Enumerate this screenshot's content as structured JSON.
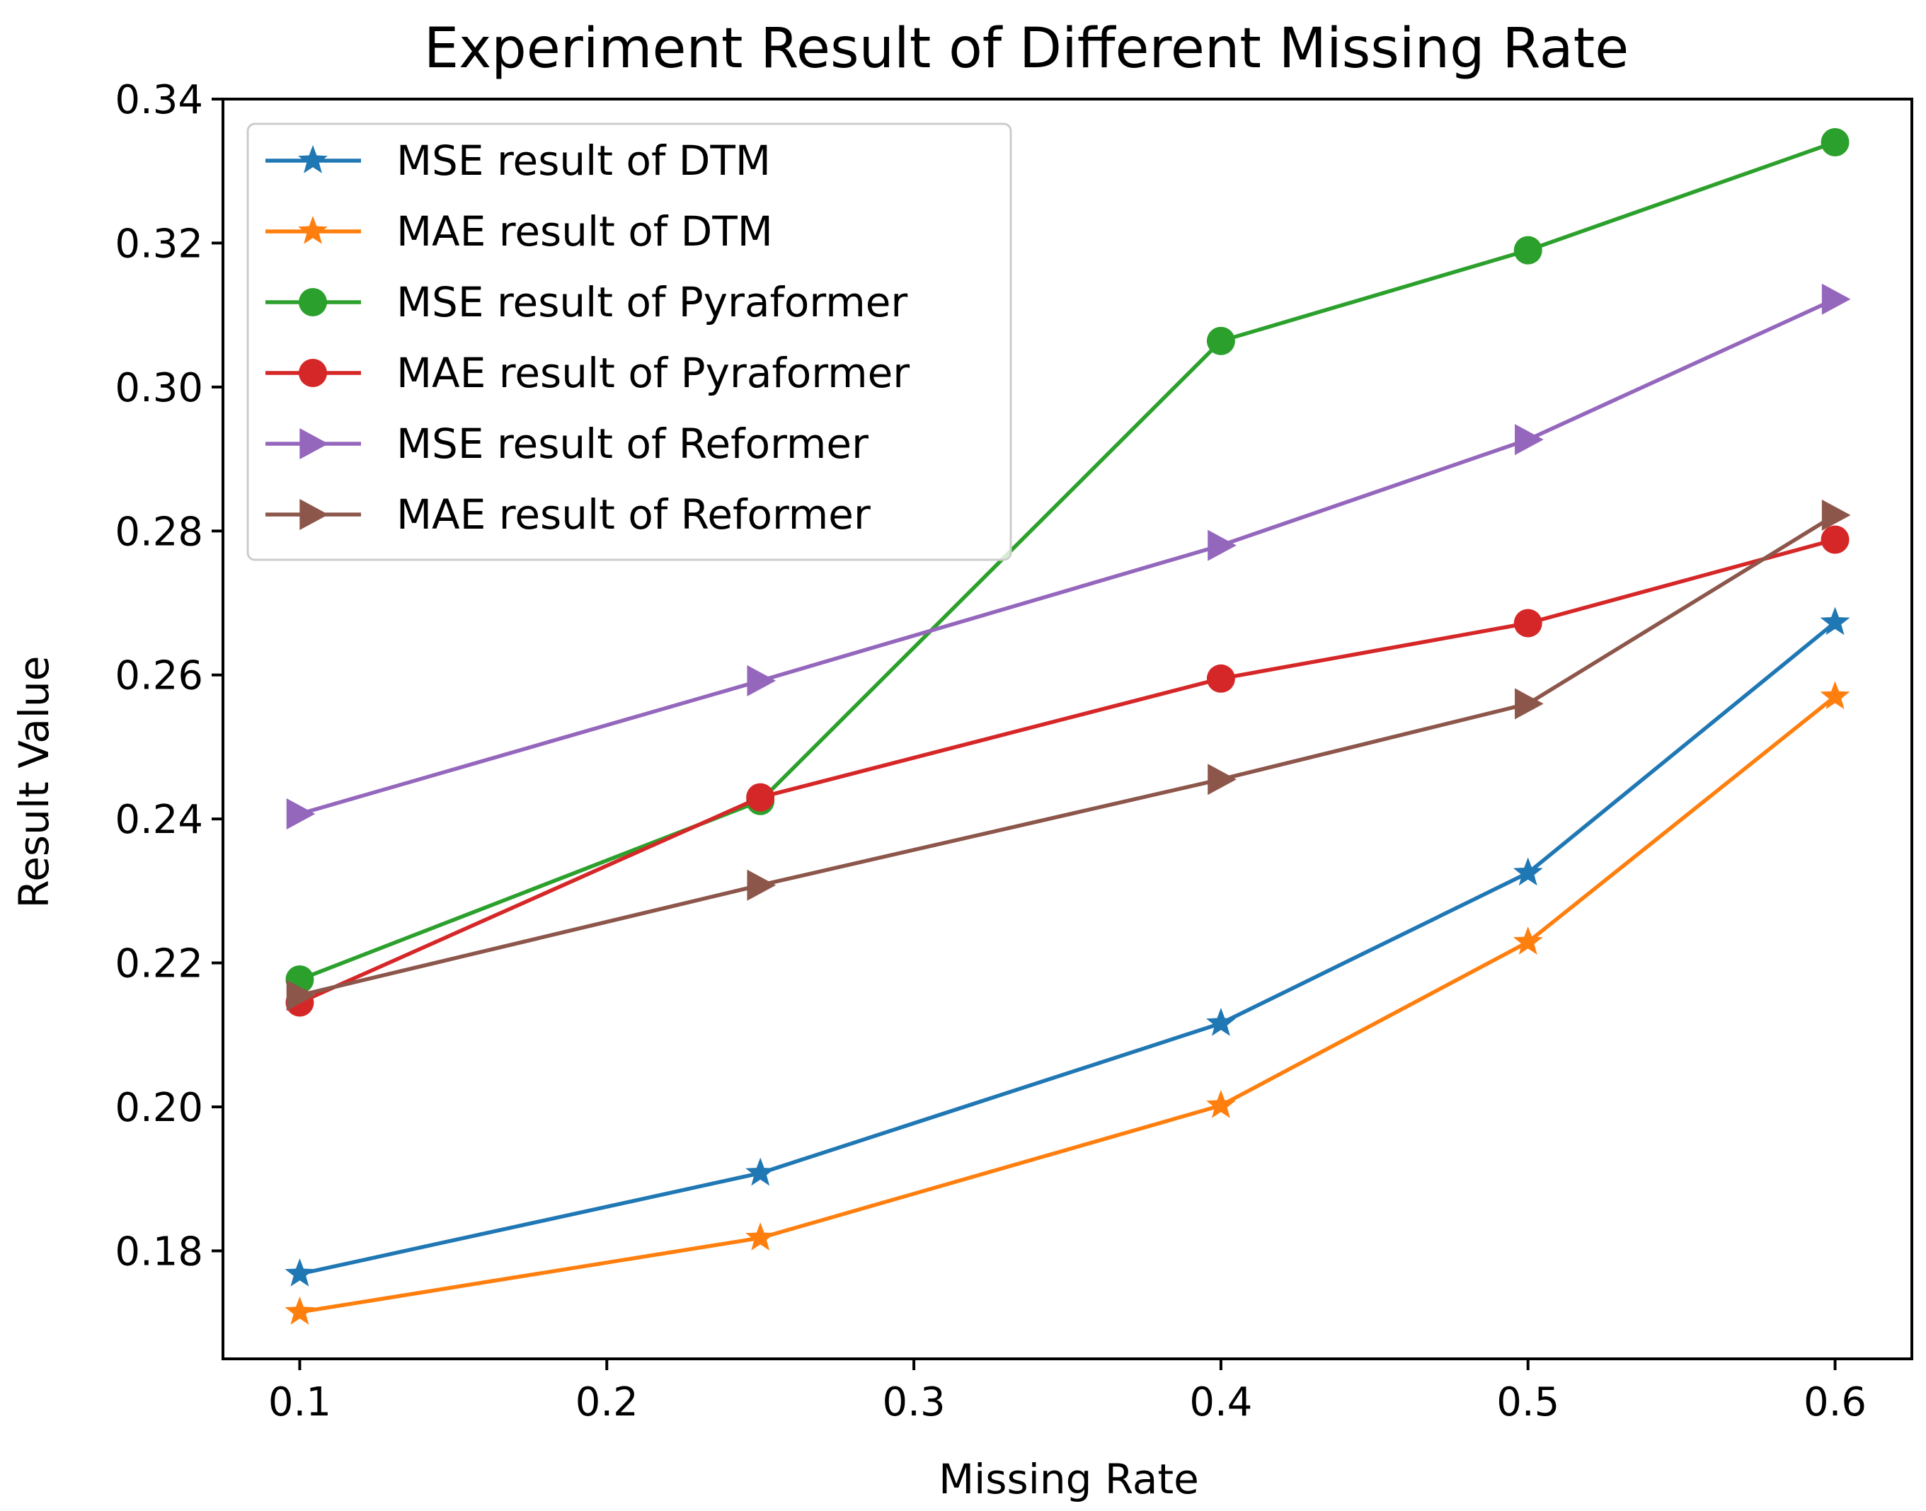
{
  "chart_data": {
    "type": "line",
    "title": "Experiment Result of Different Missing Rate",
    "xlabel": "Missing Rate",
    "ylabel": "Result Value",
    "x": [
      0.1,
      0.25,
      0.4,
      0.5,
      0.6
    ],
    "xlim": [
      0.075,
      0.625
    ],
    "ylim": [
      0.165,
      0.34
    ],
    "xticks": [
      0.1,
      0.2,
      0.3,
      0.4,
      0.5,
      0.6
    ],
    "xtick_labels": [
      "0.1",
      "0.2",
      "0.3",
      "0.4",
      "0.5",
      "0.6"
    ],
    "yticks": [
      0.18,
      0.2,
      0.22,
      0.24,
      0.26,
      0.28,
      0.3,
      0.32,
      0.34
    ],
    "ytick_labels": [
      "0.18",
      "0.20",
      "0.22",
      "0.24",
      "0.26",
      "0.28",
      "0.30",
      "0.32",
      "0.34"
    ],
    "grid": false,
    "legend_position": "top-left",
    "series": [
      {
        "name": "MSE result of DTM",
        "marker": "star",
        "color": "#1f77b4",
        "values": [
          0.1768,
          0.1908,
          0.2116,
          0.2325,
          0.2673
        ]
      },
      {
        "name": "MAE result of DTM",
        "marker": "star",
        "color": "#ff7f0e",
        "values": [
          0.1715,
          0.1818,
          0.2002,
          0.2229,
          0.257
        ]
      },
      {
        "name": "MSE result of Pyraformer",
        "marker": "circle",
        "color": "#2ca02c",
        "values": [
          0.2177,
          0.2425,
          0.3064,
          0.319,
          0.334
        ]
      },
      {
        "name": "MAE result of Pyraformer",
        "marker": "circle",
        "color": "#d62728",
        "values": [
          0.2145,
          0.243,
          0.2595,
          0.2672,
          0.2788
        ]
      },
      {
        "name": "MSE result of Reformer",
        "marker": "triangle-right",
        "color": "#9467bd",
        "values": [
          0.2407,
          0.2592,
          0.278,
          0.2927,
          0.3122
        ]
      },
      {
        "name": "MAE result of Reformer",
        "marker": "triangle-right",
        "color": "#8c564b",
        "values": [
          0.2155,
          0.2308,
          0.2455,
          0.256,
          0.2822
        ]
      }
    ]
  }
}
